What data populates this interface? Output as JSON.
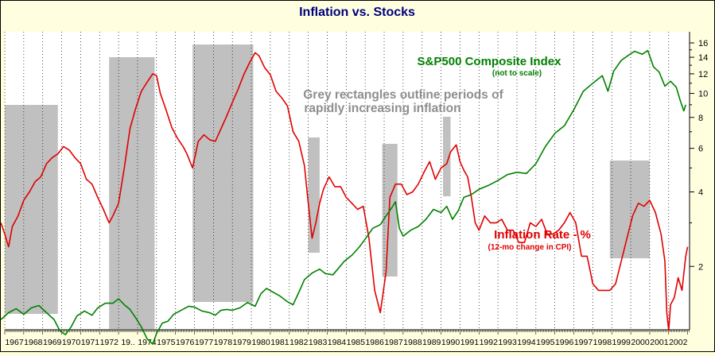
{
  "chart_data": {
    "type": "line",
    "title": "Inflation vs. Stocks",
    "x_ticks": [
      "1967",
      "1968",
      "1969",
      "1970",
      "1971",
      "1972",
      "1973",
      "1974",
      "1975",
      "1976",
      "1977",
      "1978",
      "1979",
      "1980",
      "1981",
      "1982",
      "1983",
      "1984",
      "1985",
      "1986",
      "1987",
      "1988",
      "1989",
      "1990",
      "1991",
      "1992",
      "1993",
      "1994",
      "1995",
      "1996",
      "1997",
      "1998",
      "1999",
      "2000",
      "2001",
      "2002"
    ],
    "x_tick_labels": [
      "1967",
      "1968",
      "1969",
      "1970",
      "1971",
      "1972",
      "19..",
      "1974",
      "1975",
      "1976",
      "1977",
      "1978",
      "1979",
      "1980",
      "1981",
      "1982",
      "1983",
      "1984",
      "1985",
      "1986",
      "1987",
      "1988",
      "1989",
      "1990",
      "1991",
      "1992",
      "1993",
      "1994",
      "1995",
      "1996",
      "1997",
      "1998",
      "1999",
      "2000",
      "2001",
      "2002"
    ],
    "y_scale": "log",
    "ylim": [
      1,
      16
    ],
    "y_ticks": [
      2,
      4,
      6,
      8,
      10,
      12,
      14,
      16
    ],
    "grid": true,
    "annotations": {
      "stocks_title": "S&P500 Composite Index",
      "stocks_note": "(not to scale)",
      "grey_note_line1": "Grey rectangles outline periods of",
      "grey_note_line2": "rapidly increasing inflation",
      "inflation_title": "Inflation Rate - %",
      "inflation_note": "(12-mo change in CPI)"
    },
    "shaded_periods": [
      {
        "start": 1967.0,
        "end": 1969.8,
        "color": "#C0C0C0"
      },
      {
        "start": 1972.5,
        "end": 1974.9,
        "color": "#C0C0C0"
      },
      {
        "start": 1976.9,
        "end": 1980.1,
        "color": "#C0C0C0"
      },
      {
        "start": 1983.0,
        "end": 1983.6,
        "color": "#C0C0C0"
      },
      {
        "start": 1986.9,
        "end": 1987.7,
        "color": "#C0C0C0"
      },
      {
        "start": 1990.1,
        "end": 1990.5,
        "color": "#C0C0C0"
      },
      {
        "start": 1998.9,
        "end": 2001.0,
        "color": "#C0C0C0"
      }
    ],
    "series": [
      {
        "name": "Inflation Rate - %",
        "color": "#E00000",
        "points": [
          [
            1966.8,
            3.0
          ],
          [
            1967.0,
            2.7
          ],
          [
            1967.2,
            2.4
          ],
          [
            1967.4,
            2.9
          ],
          [
            1967.7,
            3.2
          ],
          [
            1968.0,
            3.7
          ],
          [
            1968.3,
            4.0
          ],
          [
            1968.6,
            4.4
          ],
          [
            1968.9,
            4.6
          ],
          [
            1969.2,
            5.2
          ],
          [
            1969.5,
            5.5
          ],
          [
            1969.8,
            5.7
          ],
          [
            1970.1,
            6.1
          ],
          [
            1970.4,
            5.9
          ],
          [
            1970.7,
            5.5
          ],
          [
            1971.0,
            5.2
          ],
          [
            1971.3,
            4.5
          ],
          [
            1971.6,
            4.3
          ],
          [
            1971.9,
            3.8
          ],
          [
            1972.2,
            3.4
          ],
          [
            1972.5,
            3.0
          ],
          [
            1972.7,
            3.2
          ],
          [
            1973.0,
            3.6
          ],
          [
            1973.3,
            5.0
          ],
          [
            1973.6,
            7.2
          ],
          [
            1973.9,
            8.7
          ],
          [
            1974.2,
            10.2
          ],
          [
            1974.5,
            11.1
          ],
          [
            1974.8,
            12.0
          ],
          [
            1975.0,
            11.8
          ],
          [
            1975.2,
            10.0
          ],
          [
            1975.5,
            8.6
          ],
          [
            1975.8,
            7.3
          ],
          [
            1976.1,
            6.6
          ],
          [
            1976.4,
            6.1
          ],
          [
            1976.6,
            5.7
          ],
          [
            1976.9,
            5.0
          ],
          [
            1977.2,
            6.4
          ],
          [
            1977.5,
            6.8
          ],
          [
            1977.8,
            6.5
          ],
          [
            1978.1,
            6.4
          ],
          [
            1978.4,
            7.2
          ],
          [
            1978.7,
            8.1
          ],
          [
            1979.0,
            9.2
          ],
          [
            1979.3,
            10.4
          ],
          [
            1979.6,
            11.9
          ],
          [
            1979.9,
            13.3
          ],
          [
            1980.2,
            14.6
          ],
          [
            1980.4,
            14.2
          ],
          [
            1980.7,
            12.7
          ],
          [
            1981.0,
            11.9
          ],
          [
            1981.3,
            10.2
          ],
          [
            1981.6,
            9.6
          ],
          [
            1981.9,
            8.9
          ],
          [
            1982.2,
            7.0
          ],
          [
            1982.5,
            6.4
          ],
          [
            1982.8,
            5.1
          ],
          [
            1983.0,
            3.6
          ],
          [
            1983.2,
            2.6
          ],
          [
            1983.4,
            3.0
          ],
          [
            1983.6,
            3.6
          ],
          [
            1983.8,
            4.1
          ],
          [
            1984.1,
            4.6
          ],
          [
            1984.4,
            4.2
          ],
          [
            1984.7,
            4.2
          ],
          [
            1985.0,
            3.8
          ],
          [
            1985.3,
            3.6
          ],
          [
            1985.6,
            3.4
          ],
          [
            1985.9,
            3.5
          ],
          [
            1986.2,
            2.6
          ],
          [
            1986.5,
            1.6
          ],
          [
            1986.8,
            1.3
          ],
          [
            1987.1,
            1.9
          ],
          [
            1987.3,
            3.8
          ],
          [
            1987.6,
            4.3
          ],
          [
            1987.9,
            4.3
          ],
          [
            1988.2,
            3.9
          ],
          [
            1988.5,
            4.0
          ],
          [
            1988.8,
            4.3
          ],
          [
            1989.1,
            4.8
          ],
          [
            1989.4,
            5.3
          ],
          [
            1989.7,
            4.5
          ],
          [
            1990.0,
            5.0
          ],
          [
            1990.3,
            5.2
          ],
          [
            1990.5,
            5.8
          ],
          [
            1990.8,
            6.2
          ],
          [
            1991.0,
            5.3
          ],
          [
            1991.2,
            4.9
          ],
          [
            1991.4,
            4.6
          ],
          [
            1991.6,
            3.8
          ],
          [
            1991.8,
            3.0
          ],
          [
            1992.0,
            2.8
          ],
          [
            1992.3,
            3.2
          ],
          [
            1992.6,
            3.0
          ],
          [
            1992.9,
            3.0
          ],
          [
            1993.2,
            3.1
          ],
          [
            1993.5,
            2.8
          ],
          [
            1993.8,
            2.8
          ],
          [
            1994.1,
            2.5
          ],
          [
            1994.4,
            2.5
          ],
          [
            1994.7,
            3.0
          ],
          [
            1995.0,
            2.9
          ],
          [
            1995.3,
            3.1
          ],
          [
            1995.6,
            2.7
          ],
          [
            1995.9,
            2.7
          ],
          [
            1996.2,
            2.8
          ],
          [
            1996.5,
            3.0
          ],
          [
            1996.8,
            3.3
          ],
          [
            1997.1,
            3.0
          ],
          [
            1997.4,
            2.2
          ],
          [
            1997.7,
            2.2
          ],
          [
            1998.0,
            1.7
          ],
          [
            1998.3,
            1.6
          ],
          [
            1998.6,
            1.6
          ],
          [
            1998.9,
            1.6
          ],
          [
            1999.2,
            1.7
          ],
          [
            1999.5,
            2.1
          ],
          [
            1999.8,
            2.6
          ],
          [
            2000.1,
            3.2
          ],
          [
            2000.4,
            3.6
          ],
          [
            2000.7,
            3.5
          ],
          [
            2001.0,
            3.7
          ],
          [
            2001.3,
            3.3
          ],
          [
            2001.6,
            2.7
          ],
          [
            2001.8,
            2.1
          ],
          [
            2001.9,
            1.3
          ],
          [
            2002.0,
            1.1
          ],
          [
            2002.1,
            1.4
          ],
          [
            2002.3,
            1.5
          ],
          [
            2002.5,
            1.8
          ],
          [
            2002.7,
            1.6
          ],
          [
            2002.9,
            2.2
          ],
          [
            2003.0,
            2.4
          ]
        ]
      },
      {
        "name": "S&P500 Composite Index",
        "color": "#008000",
        "points": [
          [
            1966.8,
            1.22
          ],
          [
            1967.2,
            1.3
          ],
          [
            1967.6,
            1.35
          ],
          [
            1968.0,
            1.28
          ],
          [
            1968.4,
            1.36
          ],
          [
            1968.8,
            1.39
          ],
          [
            1969.2,
            1.3
          ],
          [
            1969.6,
            1.22
          ],
          [
            1969.9,
            1.1
          ],
          [
            1970.2,
            1.06
          ],
          [
            1970.5,
            1.14
          ],
          [
            1970.8,
            1.26
          ],
          [
            1971.2,
            1.32
          ],
          [
            1971.6,
            1.27
          ],
          [
            1971.9,
            1.36
          ],
          [
            1972.3,
            1.42
          ],
          [
            1972.7,
            1.42
          ],
          [
            1973.0,
            1.48
          ],
          [
            1973.3,
            1.4
          ],
          [
            1973.6,
            1.34
          ],
          [
            1973.9,
            1.24
          ],
          [
            1974.2,
            1.14
          ],
          [
            1974.5,
            1.02
          ],
          [
            1974.8,
            0.97
          ],
          [
            1975.0,
            1.07
          ],
          [
            1975.3,
            1.18
          ],
          [
            1975.6,
            1.2
          ],
          [
            1975.9,
            1.28
          ],
          [
            1976.3,
            1.33
          ],
          [
            1976.7,
            1.38
          ],
          [
            1977.0,
            1.37
          ],
          [
            1977.4,
            1.32
          ],
          [
            1977.8,
            1.3
          ],
          [
            1978.1,
            1.27
          ],
          [
            1978.4,
            1.33
          ],
          [
            1978.7,
            1.34
          ],
          [
            1979.0,
            1.33
          ],
          [
            1979.4,
            1.36
          ],
          [
            1979.8,
            1.43
          ],
          [
            1980.2,
            1.38
          ],
          [
            1980.5,
            1.55
          ],
          [
            1980.8,
            1.63
          ],
          [
            1981.1,
            1.58
          ],
          [
            1981.5,
            1.52
          ],
          [
            1981.9,
            1.44
          ],
          [
            1982.2,
            1.4
          ],
          [
            1982.5,
            1.57
          ],
          [
            1982.8,
            1.77
          ],
          [
            1983.2,
            1.88
          ],
          [
            1983.6,
            1.95
          ],
          [
            1983.9,
            1.87
          ],
          [
            1984.3,
            1.85
          ],
          [
            1984.6,
            1.97
          ],
          [
            1984.9,
            2.1
          ],
          [
            1985.3,
            2.22
          ],
          [
            1985.7,
            2.4
          ],
          [
            1986.0,
            2.58
          ],
          [
            1986.4,
            2.85
          ],
          [
            1986.8,
            2.95
          ],
          [
            1987.1,
            3.2
          ],
          [
            1987.4,
            3.45
          ],
          [
            1987.6,
            3.65
          ],
          [
            1987.8,
            2.85
          ],
          [
            1988.0,
            2.65
          ],
          [
            1988.4,
            2.8
          ],
          [
            1988.8,
            2.9
          ],
          [
            1989.2,
            3.1
          ],
          [
            1989.6,
            3.4
          ],
          [
            1990.0,
            3.3
          ],
          [
            1990.3,
            3.5
          ],
          [
            1990.6,
            3.1
          ],
          [
            1990.9,
            3.35
          ],
          [
            1991.2,
            3.8
          ],
          [
            1991.6,
            3.9
          ],
          [
            1992.0,
            4.1
          ],
          [
            1992.5,
            4.25
          ],
          [
            1993.0,
            4.45
          ],
          [
            1993.5,
            4.7
          ],
          [
            1994.0,
            4.8
          ],
          [
            1994.5,
            4.75
          ],
          [
            1995.0,
            5.2
          ],
          [
            1995.5,
            6.1
          ],
          [
            1996.0,
            6.9
          ],
          [
            1996.5,
            7.4
          ],
          [
            1997.0,
            8.6
          ],
          [
            1997.5,
            10.2
          ],
          [
            1998.0,
            11.0
          ],
          [
            1998.5,
            11.8
          ],
          [
            1998.8,
            10.2
          ],
          [
            1999.1,
            12.3
          ],
          [
            1999.5,
            13.6
          ],
          [
            1999.9,
            14.3
          ],
          [
            2000.2,
            14.8
          ],
          [
            2000.6,
            14.4
          ],
          [
            2000.9,
            14.9
          ],
          [
            2001.2,
            12.8
          ],
          [
            2001.5,
            12.2
          ],
          [
            2001.8,
            10.7
          ],
          [
            2002.1,
            11.2
          ],
          [
            2002.4,
            10.6
          ],
          [
            2002.6,
            9.4
          ],
          [
            2002.8,
            8.5
          ],
          [
            2002.9,
            9.0
          ]
        ]
      }
    ]
  }
}
